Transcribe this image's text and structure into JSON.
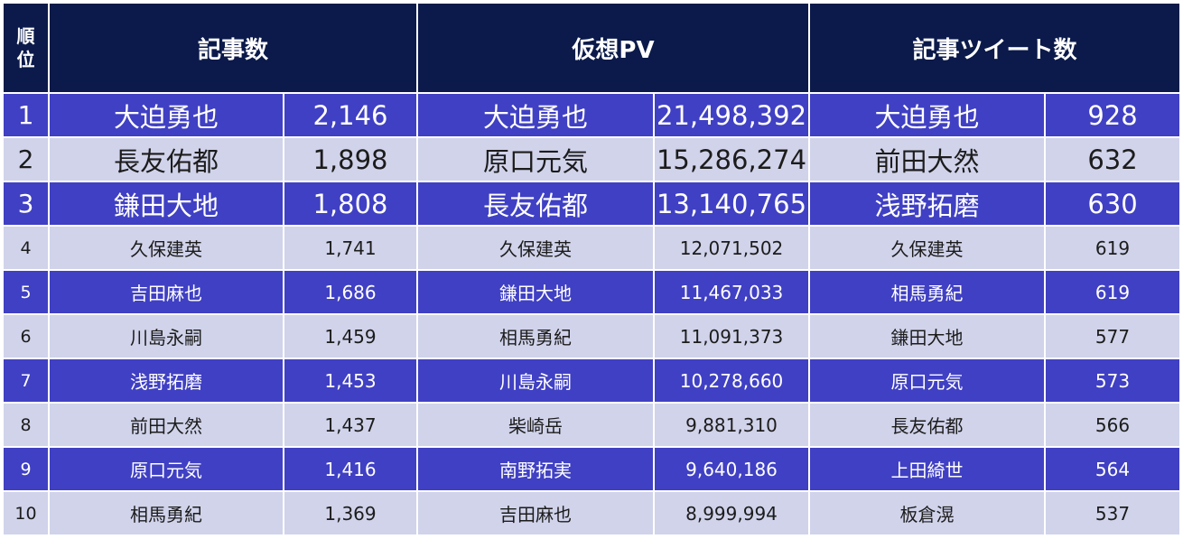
{
  "header": {
    "rank": [
      "順",
      "位"
    ],
    "articles": "記事数",
    "virtual_pv": "仮想PV",
    "tweets": "記事ツイート数"
  },
  "rows": [
    {
      "rank": "1",
      "a_name": "大迫勇也",
      "a_val": "2,146",
      "p_name": "大迫勇也",
      "p_val": "21,498,392",
      "t_name": "大迫勇也",
      "t_val": "928"
    },
    {
      "rank": "2",
      "a_name": "長友佑都",
      "a_val": "1,898",
      "p_name": "原口元気",
      "p_val": "15,286,274",
      "t_name": "前田大然",
      "t_val": "632"
    },
    {
      "rank": "3",
      "a_name": "鎌田大地",
      "a_val": "1,808",
      "p_name": "長友佑都",
      "p_val": "13,140,765",
      "t_name": "浅野拓磨",
      "t_val": "630"
    },
    {
      "rank": "4",
      "a_name": "久保建英",
      "a_val": "1,741",
      "p_name": "久保建英",
      "p_val": "12,071,502",
      "t_name": "久保建英",
      "t_val": "619"
    },
    {
      "rank": "5",
      "a_name": "吉田麻也",
      "a_val": "1,686",
      "p_name": "鎌田大地",
      "p_val": "11,467,033",
      "t_name": "相馬勇紀",
      "t_val": "619"
    },
    {
      "rank": "6",
      "a_name": "川島永嗣",
      "a_val": "1,459",
      "p_name": "相馬勇紀",
      "p_val": "11,091,373",
      "t_name": "鎌田大地",
      "t_val": "577"
    },
    {
      "rank": "7",
      "a_name": "浅野拓磨",
      "a_val": "1,453",
      "p_name": "川島永嗣",
      "p_val": "10,278,660",
      "t_name": "原口元気",
      "t_val": "573"
    },
    {
      "rank": "8",
      "a_name": "前田大然",
      "a_val": "1,437",
      "p_name": "柴崎岳",
      "p_val": "9,881,310",
      "t_name": "長友佑都",
      "t_val": "566"
    },
    {
      "rank": "9",
      "a_name": "原口元気",
      "a_val": "1,416",
      "p_name": "南野拓実",
      "p_val": "9,640,186",
      "t_name": "上田綺世",
      "t_val": "564"
    },
    {
      "rank": "10",
      "a_name": "相馬勇紀",
      "a_val": "1,369",
      "p_name": "吉田麻也",
      "p_val": "8,999,994",
      "t_name": "板倉滉",
      "t_val": "537"
    }
  ],
  "colors": {
    "header_bg": "#0b1a4a",
    "odd_row_bg": "#4040c4",
    "even_row_bg": "#d0d3ea"
  }
}
